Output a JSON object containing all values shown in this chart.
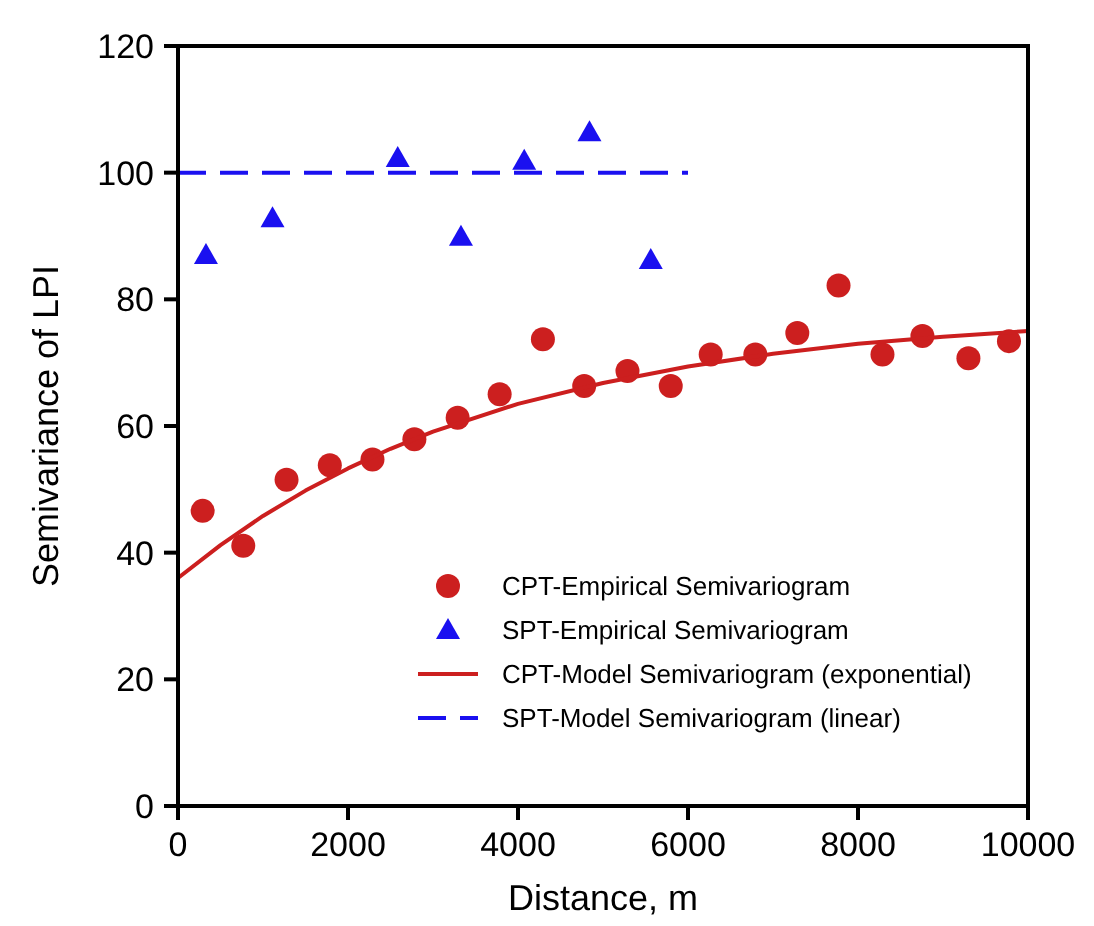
{
  "chart_data": {
    "type": "scatter",
    "xlabel": "Distance, m",
    "ylabel": "Semivariance of LPI",
    "xlim": [
      0,
      10000
    ],
    "ylim": [
      0,
      120
    ],
    "xticks": [
      0,
      2000,
      4000,
      6000,
      8000,
      10000
    ],
    "yticks": [
      0,
      20,
      40,
      60,
      80,
      100,
      120
    ],
    "legend": "bottom right",
    "grid": false,
    "series": [
      {
        "name": "CPT-Empirical Semivariogram",
        "marker": "circle",
        "color": "#cc1f1f",
        "x": [
          290,
          768,
          1277,
          1786,
          2288,
          2781,
          3290,
          3784,
          4293,
          4779,
          5288,
          5797,
          6267,
          6792,
          7286,
          7771,
          8288,
          8758,
          9299,
          9776
        ],
        "values": [
          46.6,
          41.1,
          51.5,
          53.8,
          54.7,
          57.9,
          61.3,
          65.0,
          73.7,
          66.3,
          68.7,
          66.3,
          71.3,
          71.3,
          74.7,
          82.2,
          71.3,
          74.2,
          70.7,
          73.4
        ]
      },
      {
        "name": "SPT-Empirical Semivariogram",
        "marker": "triangle",
        "color": "#1a10f0",
        "x": [
          329,
          1112,
          2585,
          3329,
          4073,
          4841,
          5562
        ],
        "values": [
          87.0,
          92.8,
          102.3,
          89.9,
          101.9,
          106.4,
          86.2
        ]
      },
      {
        "name": "CPT-Model Semivariogram (exponential)",
        "type": "line",
        "marker": "none",
        "line_style": "solid",
        "color": "#cc1f1f",
        "x": [
          0,
          500,
          1000,
          1500,
          2000,
          2500,
          3000,
          4000,
          5000,
          6000,
          7000,
          8000,
          9000,
          10000
        ],
        "values": [
          36.0,
          41.2,
          45.8,
          49.8,
          53.3,
          56.4,
          59.1,
          63.5,
          66.8,
          69.4,
          71.4,
          73.0,
          74.1,
          75.0
        ]
      },
      {
        "name": "SPT-Model Semivariogram (linear)",
        "type": "line",
        "marker": "none",
        "line_style": "dashed",
        "color": "#1a10f0",
        "x": [
          0,
          6000
        ],
        "values": [
          100,
          100
        ]
      }
    ]
  }
}
